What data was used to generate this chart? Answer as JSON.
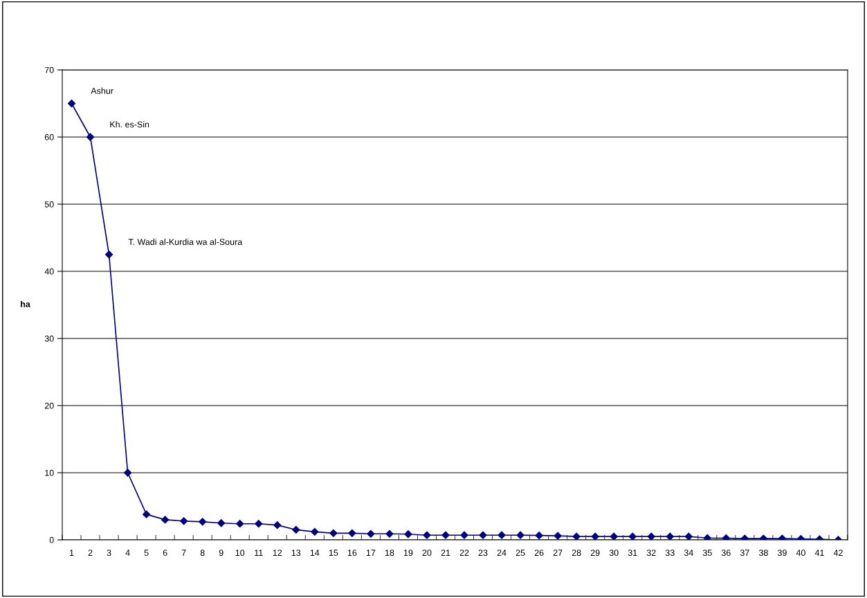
{
  "chart_data": {
    "type": "line",
    "ylabel": "ha",
    "categories": [
      "1",
      "2",
      "3",
      "4",
      "5",
      "6",
      "7",
      "8",
      "9",
      "10",
      "11",
      "12",
      "13",
      "14",
      "15",
      "16",
      "17",
      "18",
      "19",
      "20",
      "21",
      "22",
      "23",
      "24",
      "25",
      "26",
      "27",
      "28",
      "29",
      "30",
      "31",
      "32",
      "33",
      "34",
      "35",
      "36",
      "37",
      "38",
      "39",
      "40",
      "41",
      "42"
    ],
    "series": [
      {
        "color": "#000080",
        "values": [
          65,
          60,
          42.5,
          10,
          3.8,
          3.0,
          2.8,
          2.7,
          2.5,
          2.4,
          2.4,
          2.2,
          1.5,
          1.2,
          1.0,
          1.0,
          0.9,
          0.9,
          0.85,
          0.7,
          0.7,
          0.7,
          0.7,
          0.7,
          0.7,
          0.65,
          0.6,
          0.5,
          0.5,
          0.5,
          0.5,
          0.5,
          0.5,
          0.5,
          0.27,
          0.25,
          0.2,
          0.2,
          0.2,
          0.15,
          0.1,
          0
        ]
      }
    ],
    "annotations": [
      {
        "text": "Ashur",
        "x": "1",
        "y": 65
      },
      {
        "text": "Kh. es-Sin",
        "x": "2",
        "y": 60
      },
      {
        "text": "T. Wadi al-Kurdia wa al-Soura",
        "x": "3",
        "y": 42.5
      }
    ],
    "ylim": [
      0,
      70
    ],
    "yticks": [
      0,
      10,
      20,
      30,
      40,
      50,
      60,
      70
    ],
    "grid": "y",
    "marker": "diamond",
    "line_style": "solid",
    "legend": false
  }
}
